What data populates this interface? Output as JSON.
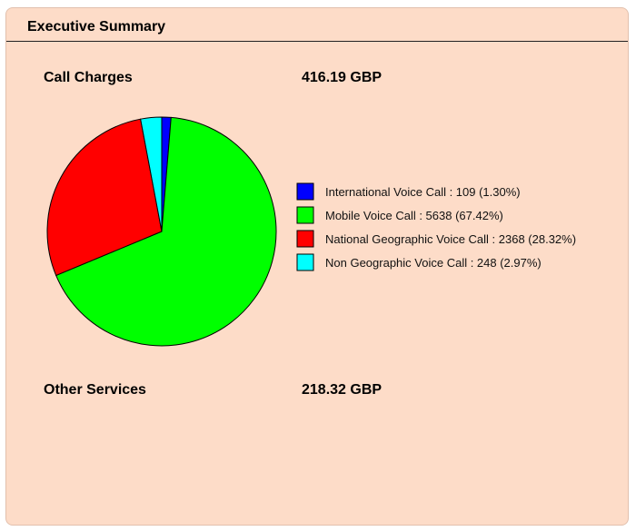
{
  "panel": {
    "title": "Executive Summary"
  },
  "call_charges": {
    "label": "Call Charges",
    "amount": "416.19 GBP"
  },
  "other_services": {
    "label": "Other Services",
    "amount": "218.32 GBP"
  },
  "chart_data": {
    "type": "pie",
    "categories": [
      "International Voice Call",
      "Mobile Voice Call",
      "National Geographic Voice Call",
      "Non Geographic Voice Call"
    ],
    "values": [
      109,
      5638,
      2368,
      248
    ],
    "percentages": [
      "1.30%",
      "67.42%",
      "28.32%",
      "2.97%"
    ],
    "legend_labels": [
      "International Voice Call : 109 (1.30%)",
      "Mobile Voice Call : 5638 (67.42%)",
      "National Geographic Voice Call : 2368 (28.32%)",
      "Non Geographic Voice Call : 248 (2.97%)"
    ],
    "colors": [
      "#0000ff",
      "#00ff00",
      "#ff0000",
      "#00ffff"
    ],
    "legend_position": "right"
  },
  "colors": {
    "panel_background": "#fddcc8"
  }
}
